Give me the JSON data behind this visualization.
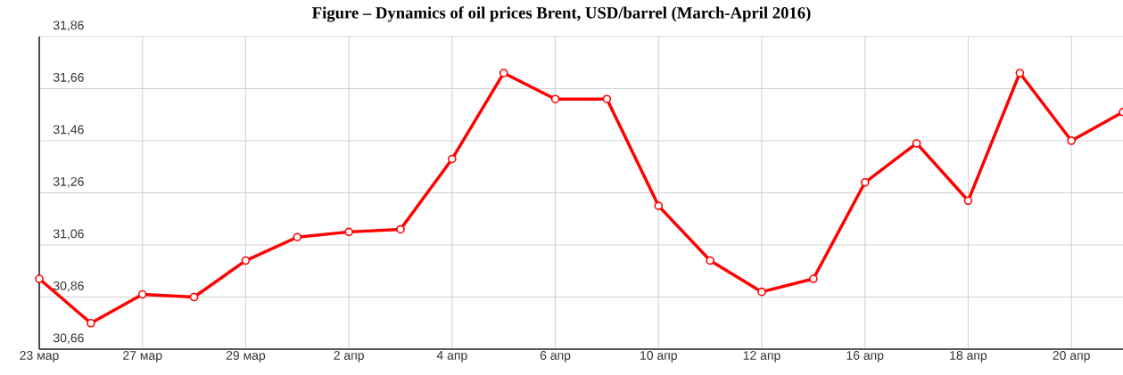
{
  "chart_data": {
    "type": "line",
    "title": "Figure – Dynamics of oil prices Brent, USD/barrel (March-April 2016)",
    "categories": [
      "23 мар",
      null,
      "27 мар",
      null,
      "29 мар",
      null,
      "2 апр",
      null,
      "4 апр",
      null,
      "6 апр",
      null,
      "10 апр",
      null,
      "12 апр",
      null,
      "16 апр",
      null,
      "18 апр",
      null,
      "20 апр",
      null
    ],
    "series": [
      {
        "color": "#ff0000",
        "values": [
          30.93,
          30.76,
          30.87,
          30.86,
          31.0,
          31.09,
          31.11,
          31.12,
          31.39,
          31.72,
          31.62,
          31.62,
          31.21,
          31.0,
          30.88,
          30.93,
          31.3,
          31.45,
          31.23,
          31.72,
          31.46,
          31.57
        ]
      }
    ],
    "ylim": [
      30.66,
      31.86
    ],
    "yticks": [
      {
        "value": 30.66,
        "label": "30,66"
      },
      {
        "value": 30.86,
        "label": "30,86"
      },
      {
        "value": 31.06,
        "label": "31,06"
      },
      {
        "value": 31.26,
        "label": "31,26"
      },
      {
        "value": 31.46,
        "label": "31,46"
      },
      {
        "value": 31.66,
        "label": "31,66"
      },
      {
        "value": 31.86,
        "label": "31,86"
      }
    ],
    "grid": true,
    "marker": "circle",
    "line_style": "solid"
  }
}
